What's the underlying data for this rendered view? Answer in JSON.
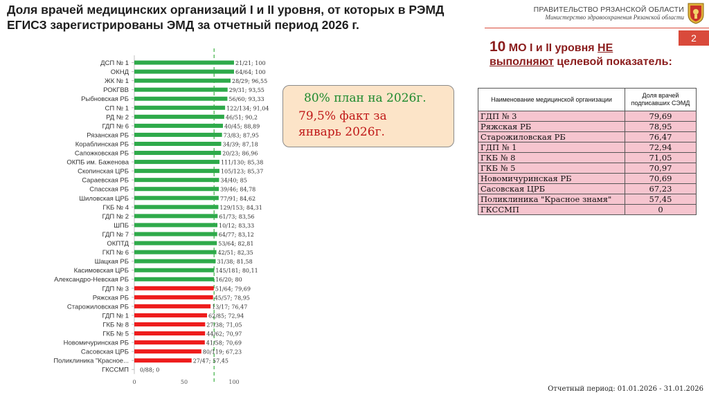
{
  "header": {
    "title": "Доля врачей медицинских организаций I и II уровня, от которых в РЭМД ЕГИСЗ зарегистрированы ЭМД за отчетный период 2026 г.",
    "gov_line1": "ПРАВИТЕЛЬСТВО РЯЗАНСКОЙ ОБЛАСТИ",
    "gov_line2": "Министерство здравоохранения Рязанской области",
    "page_number": "2"
  },
  "note": {
    "plan": "80% план на 2026г.",
    "fact_line1": "79,5% факт за",
    "fact_line2": "январь 2026г."
  },
  "right_heading": {
    "count": "10",
    "part1": " МО I и II уровня ",
    "part2": "НЕ",
    "part3": "выполняют",
    "part4": " целевой показатель:"
  },
  "table": {
    "col1": "Наименование медицинской организации",
    "col2": "Доля врачей подписавших СЭМД",
    "rows": [
      {
        "name": "ГДП № 3",
        "value": "79,69"
      },
      {
        "name": "Ряжская РБ",
        "value": "78,95"
      },
      {
        "name": "Старожиловская РБ",
        "value": "76,47"
      },
      {
        "name": "ГДП № 1",
        "value": "72,94"
      },
      {
        "name": "ГКБ № 8",
        "value": "71,05"
      },
      {
        "name": "ГКБ № 5",
        "value": "70,97"
      },
      {
        "name": "Новомичуринская РБ",
        "value": "70,69"
      },
      {
        "name": "Сасовская ЦРБ",
        "value": "67,23"
      },
      {
        "name": "Поликлиника \"Красное знамя\"",
        "value": "57,45"
      },
      {
        "name": "ГКССМП",
        "value": "0"
      }
    ]
  },
  "footer": "Отчетный период: 01.01.2026 - 31.01.2026",
  "colors": {
    "good": "#2eaa4a",
    "bad": "#ee1c1c",
    "threshold": "#3cb043"
  },
  "chart_data": {
    "type": "bar",
    "orientation": "horizontal",
    "threshold": 80,
    "xlim": [
      0,
      100
    ],
    "xticks": [
      "0",
      "50",
      "100"
    ],
    "categories": [
      "ДСП № 1",
      "ОКНД",
      "ЖК № 1",
      "РОКГВВ",
      "Рыбновская РБ",
      "СП № 1",
      "РД № 2",
      "ГДП № 6",
      "Рязанская РБ",
      "Кораблинская РБ",
      "Сапожковская РБ",
      "ОКПБ им. Баженова",
      "Скопинская ЦРБ",
      "Сараевская РБ",
      "Спасская РБ",
      "Шиловская ЦРБ",
      "ГКБ № 4",
      "ГДП № 2",
      "ШПБ",
      "ГДП № 7",
      "ОКПТД",
      "ГКП № 6",
      "Шацкая РБ",
      "Касимовская ЦРБ",
      "Александро-Невская РБ",
      "ГДП № 3",
      "Ряжская РБ",
      "Старожиловская РБ",
      "ГДП № 1",
      "ГКБ № 8",
      "ГКБ № 5",
      "Новомичуринская РБ",
      "Сасовская ЦРБ",
      "Поликлиника \"Красное...",
      "ГКССМП"
    ],
    "values": [
      100,
      100,
      96.55,
      93.55,
      93.33,
      91.04,
      90.2,
      88.89,
      87.95,
      87.18,
      86.96,
      85.38,
      85.37,
      85,
      84.78,
      84.62,
      84.31,
      83.56,
      83.33,
      83.12,
      82.81,
      82.35,
      81.58,
      80.11,
      80,
      79.69,
      78.95,
      76.47,
      72.94,
      71.05,
      70.97,
      70.69,
      67.23,
      57.45,
      0
    ],
    "labels": [
      "21/21; 100",
      "64/64; 100",
      "28/29; 96,55",
      "29/31; 93,55",
      "56/60; 93,33",
      "122/134; 91,04",
      "46/51; 90,2",
      "40/45; 88,89",
      "73/83; 87,95",
      "34/39; 87,18",
      "20/23; 86,96",
      "111/130; 85,38",
      "105/123; 85,37",
      "34/40; 85",
      "39/46; 84,78",
      "77/91; 84,62",
      "129/153; 84,31",
      "61/73; 83,56",
      "10/12; 83,33",
      "64/77; 83,12",
      "53/64; 82,81",
      "42/51; 82,35",
      "31/38; 81,58",
      "145/181; 80,11",
      "16/20; 80",
      "51/64; 79,69",
      "45/57; 78,95",
      "13/17; 76,47",
      "62/85; 72,94",
      "27/38; 71,05",
      "44/62; 70,97",
      "41/58; 70,69",
      "80/119; 67,23",
      "27/47; 57,45",
      "0/88; 0"
    ]
  }
}
